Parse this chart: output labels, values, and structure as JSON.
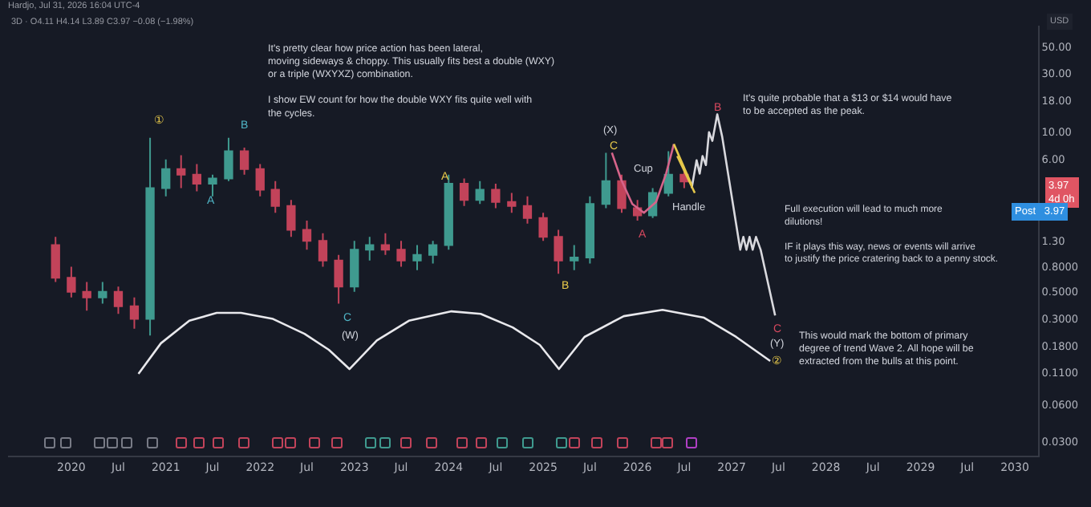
{
  "chart_data": {
    "type": "candlestick",
    "subtitle": "3D · O4.11 H4.14 L3.89 C3.97 −0.08 (−1.98%)",
    "x": [
      "2019-11",
      "2020-01",
      "2020-03",
      "2020-05",
      "2020-07",
      "2020-09",
      "2020-11",
      "2021-01",
      "2021-03",
      "2021-05",
      "2021-07",
      "2021-09",
      "2021-11",
      "2022-01",
      "2022-03",
      "2022-05",
      "2022-07",
      "2022-09",
      "2022-11",
      "2023-01",
      "2023-03",
      "2023-05",
      "2023-07",
      "2023-09",
      "2023-11",
      "2024-01",
      "2024-03",
      "2024-05",
      "2024-07",
      "2024-09",
      "2024-11",
      "2025-01",
      "2025-03",
      "2025-05",
      "2025-07",
      "2025-09",
      "2025-11",
      "2026-01",
      "2026-03",
      "2026-05",
      "2026-07"
    ],
    "ohlc": [
      [
        1.2,
        1.4,
        0.6,
        0.65
      ],
      [
        0.65,
        0.8,
        0.45,
        0.5
      ],
      [
        0.5,
        0.6,
        0.35,
        0.45
      ],
      [
        0.45,
        0.6,
        0.4,
        0.5
      ],
      [
        0.5,
        0.55,
        0.33,
        0.38
      ],
      [
        0.38,
        0.45,
        0.25,
        0.3
      ],
      [
        0.3,
        9,
        0.22,
        3.5
      ],
      [
        3.5,
        6,
        3,
        5
      ],
      [
        5,
        6.5,
        3.5,
        4.5
      ],
      [
        4.5,
        5.5,
        3.3,
        3.8
      ],
      [
        3.8,
        4.5,
        3,
        4.2
      ],
      [
        4.2,
        9,
        4,
        7
      ],
      [
        7,
        7.5,
        4.5,
        5
      ],
      [
        5,
        5.5,
        3,
        3.4
      ],
      [
        3.4,
        4,
        2.2,
        2.5
      ],
      [
        2.5,
        2.8,
        1.4,
        1.6
      ],
      [
        1.6,
        1.9,
        1.1,
        1.3
      ],
      [
        1.3,
        1.5,
        0.8,
        0.9
      ],
      [
        0.9,
        1,
        0.4,
        0.55
      ],
      [
        0.55,
        1.3,
        0.5,
        1.1
      ],
      [
        1.1,
        1.4,
        0.9,
        1.2
      ],
      [
        1.2,
        1.5,
        1,
        1.1
      ],
      [
        1.1,
        1.3,
        0.8,
        0.9
      ],
      [
        0.9,
        1.2,
        0.75,
        1
      ],
      [
        1,
        1.3,
        0.85,
        1.2
      ],
      [
        1.2,
        4.5,
        1.1,
        3.8
      ],
      [
        3.8,
        4.2,
        2.5,
        2.8
      ],
      [
        2.8,
        4,
        2.6,
        3.4
      ],
      [
        3.4,
        3.8,
        2.4,
        2.7
      ],
      [
        2.7,
        3.2,
        2.2,
        2.5
      ],
      [
        2.5,
        3,
        1.8,
        2
      ],
      [
        2,
        2.2,
        1.3,
        1.4
      ],
      [
        1.4,
        1.6,
        0.7,
        0.9
      ],
      [
        0.9,
        1.2,
        0.75,
        0.95
      ],
      [
        0.95,
        3,
        0.85,
        2.6
      ],
      [
        2.6,
        6.8,
        2.4,
        4
      ],
      [
        4,
        4.5,
        2.2,
        2.4
      ],
      [
        2.4,
        2.8,
        1.9,
        2.1
      ],
      [
        2.1,
        3.5,
        2,
        3.2
      ],
      [
        3.2,
        7,
        3,
        4.5
      ],
      [
        4.5,
        5,
        3.5,
        3.97
      ]
    ],
    "series": [
      {
        "type": "line",
        "color": "#d9d9de",
        "x": [
          "2026-07-30",
          "2026-08-18",
          "2026-08-30",
          "2026-09-10",
          "2026-09-23",
          "2026-10-05",
          "2026-10-18",
          "2026-11-06",
          "2026-11-25",
          "2027-01-26",
          "2027-02-03",
          "2027-02-15",
          "2027-02-27",
          "2027-03-11",
          "2027-03-23",
          "2027-04-05",
          "2027-04-23",
          "2027-06-18"
        ],
        "values": [
          3.5,
          5.9,
          4.6,
          6.4,
          5.4,
          10,
          8.5,
          14,
          9.2,
          1.4,
          1.1,
          1.4,
          1.1,
          1.4,
          1.1,
          1.4,
          1.1,
          0.32
        ]
      },
      {
        "type": "line",
        "color": "#d6648a",
        "x": [
          "2025-09-24",
          "2025-10-30",
          "2025-12-12",
          "2026-01-26",
          "2026-03-14",
          "2026-04-22",
          "2026-05-22"
        ],
        "values": [
          6.8,
          4.1,
          2.6,
          2.2,
          2.7,
          4.6,
          8
        ]
      },
      {
        "type": "line",
        "color": "#e6c84a",
        "x": [
          "2026-05-22",
          "2026-07-30"
        ],
        "values": [
          8,
          3.7
        ]
      },
      {
        "type": "line",
        "color": "#e6c84a",
        "x": [
          "2026-06-04",
          "2026-08-11"
        ],
        "values": [
          6.4,
          3.2
        ]
      },
      {
        "type": "line",
        "color": "#e8e8ec",
        "x": [
          "2020-09-17",
          "2020-12-13",
          "2021-04-02",
          "2021-07-17",
          "2021-10-19",
          "2022-02-20",
          "2022-06-22",
          "2022-09-24",
          "2022-12-13",
          "2023-03-29",
          "2023-07-31",
          "2024-01-12",
          "2024-05-04",
          "2024-09-05",
          "2024-12-19",
          "2025-03-03",
          "2025-06-10",
          "2025-11-09",
          "2026-04-08",
          "2026-09-16",
          "2027-01-18",
          "2027-05-30"
        ],
        "values": [
          0.107,
          0.19,
          0.29,
          0.336,
          0.336,
          0.3,
          0.227,
          0.168,
          0.117,
          0.2,
          0.29,
          0.346,
          0.33,
          0.256,
          0.184,
          0.117,
          0.214,
          0.316,
          0.356,
          0.307,
          0.214,
          0.136
        ]
      }
    ],
    "annotations": [
      "Hardjo, Jul 31, 2026 16:04 UTC-4",
      "It's pretty clear how price action has been lateral,\nmoving sideways & choppy. This usually fits best a double (WXY)\nor a triple (WXYXZ) combination.\n\nI show EW count for how the double WXY fits quite well with\nthe cycles.",
      "It's quite probable that a $13 or $14 would have\nto be accepted as the peak.",
      "Full execution will lead to much more\ndilutions!\n\nIF it plays this way, news or events will arrive\nto justify the price cratering back to a penny stock.",
      "This would mark the bottom of primary\ndegree of trend Wave 2. All hope will be\nextracted from the bulls at this point.",
      "USD",
      "3.97\n4d 0h",
      "Post   3.97",
      "①",
      "A",
      "B",
      "C",
      "(W)",
      "A",
      "B",
      "C",
      "(X)",
      "Cup",
      "A",
      "Handle",
      "B",
      "C",
      "(Y)",
      "②"
    ],
    "log": true,
    "xlim": [
      "2019-05-01",
      "2030-04-01"
    ],
    "xticks": [
      {
        "value": "2020-01-01",
        "label": "2020"
      },
      {
        "value": "2020-07-01",
        "label": "Jul"
      },
      {
        "value": "2021-01-01",
        "label": "2021"
      },
      {
        "value": "2021-07-01",
        "label": "Jul"
      },
      {
        "value": "2022-01-01",
        "label": "2022"
      },
      {
        "value": "2022-07-01",
        "label": "Jul"
      },
      {
        "value": "2023-01-01",
        "label": "2023"
      },
      {
        "value": "2023-07-01",
        "label": "Jul"
      },
      {
        "value": "2024-01-01",
        "label": "2024"
      },
      {
        "value": "2024-07-01",
        "label": "Jul"
      },
      {
        "value": "2025-01-01",
        "label": "2025"
      },
      {
        "value": "2025-07-01",
        "label": "Jul"
      },
      {
        "value": "2026-01-01",
        "label": "2026"
      },
      {
        "value": "2026-07-01",
        "label": "Jul"
      },
      {
        "value": "2027-01-01",
        "label": "2027"
      },
      {
        "value": "2027-07-01",
        "label": "Jul"
      },
      {
        "value": "2028-01-01",
        "label": "2028"
      },
      {
        "value": "2028-07-01",
        "label": "Jul"
      },
      {
        "value": "2029-01-01",
        "label": "2029"
      },
      {
        "value": "2029-07-01",
        "label": "Jul"
      },
      {
        "value": "2030-01-01",
        "label": "2030"
      }
    ],
    "ylim": [
      0.023,
      74
    ],
    "yticks": [
      {
        "value": 50,
        "label": "50.00"
      },
      {
        "value": 30,
        "label": "30.00"
      },
      {
        "value": 18,
        "label": "18.00"
      },
      {
        "value": 10,
        "label": "10.00"
      },
      {
        "value": 6,
        "label": "6.00"
      },
      {
        "value": 1.3,
        "label": "1.30"
      },
      {
        "value": 0.8,
        "label": "0.8000"
      },
      {
        "value": 0.5,
        "label": "0.5000"
      },
      {
        "value": 0.3,
        "label": "0.3000"
      },
      {
        "value": 0.18,
        "label": "0.1800"
      },
      {
        "value": 0.11,
        "label": "0.1100"
      },
      {
        "value": 0.06,
        "label": "0.0600"
      },
      {
        "value": 0.03,
        "label": "0.0300"
      }
    ]
  }
}
